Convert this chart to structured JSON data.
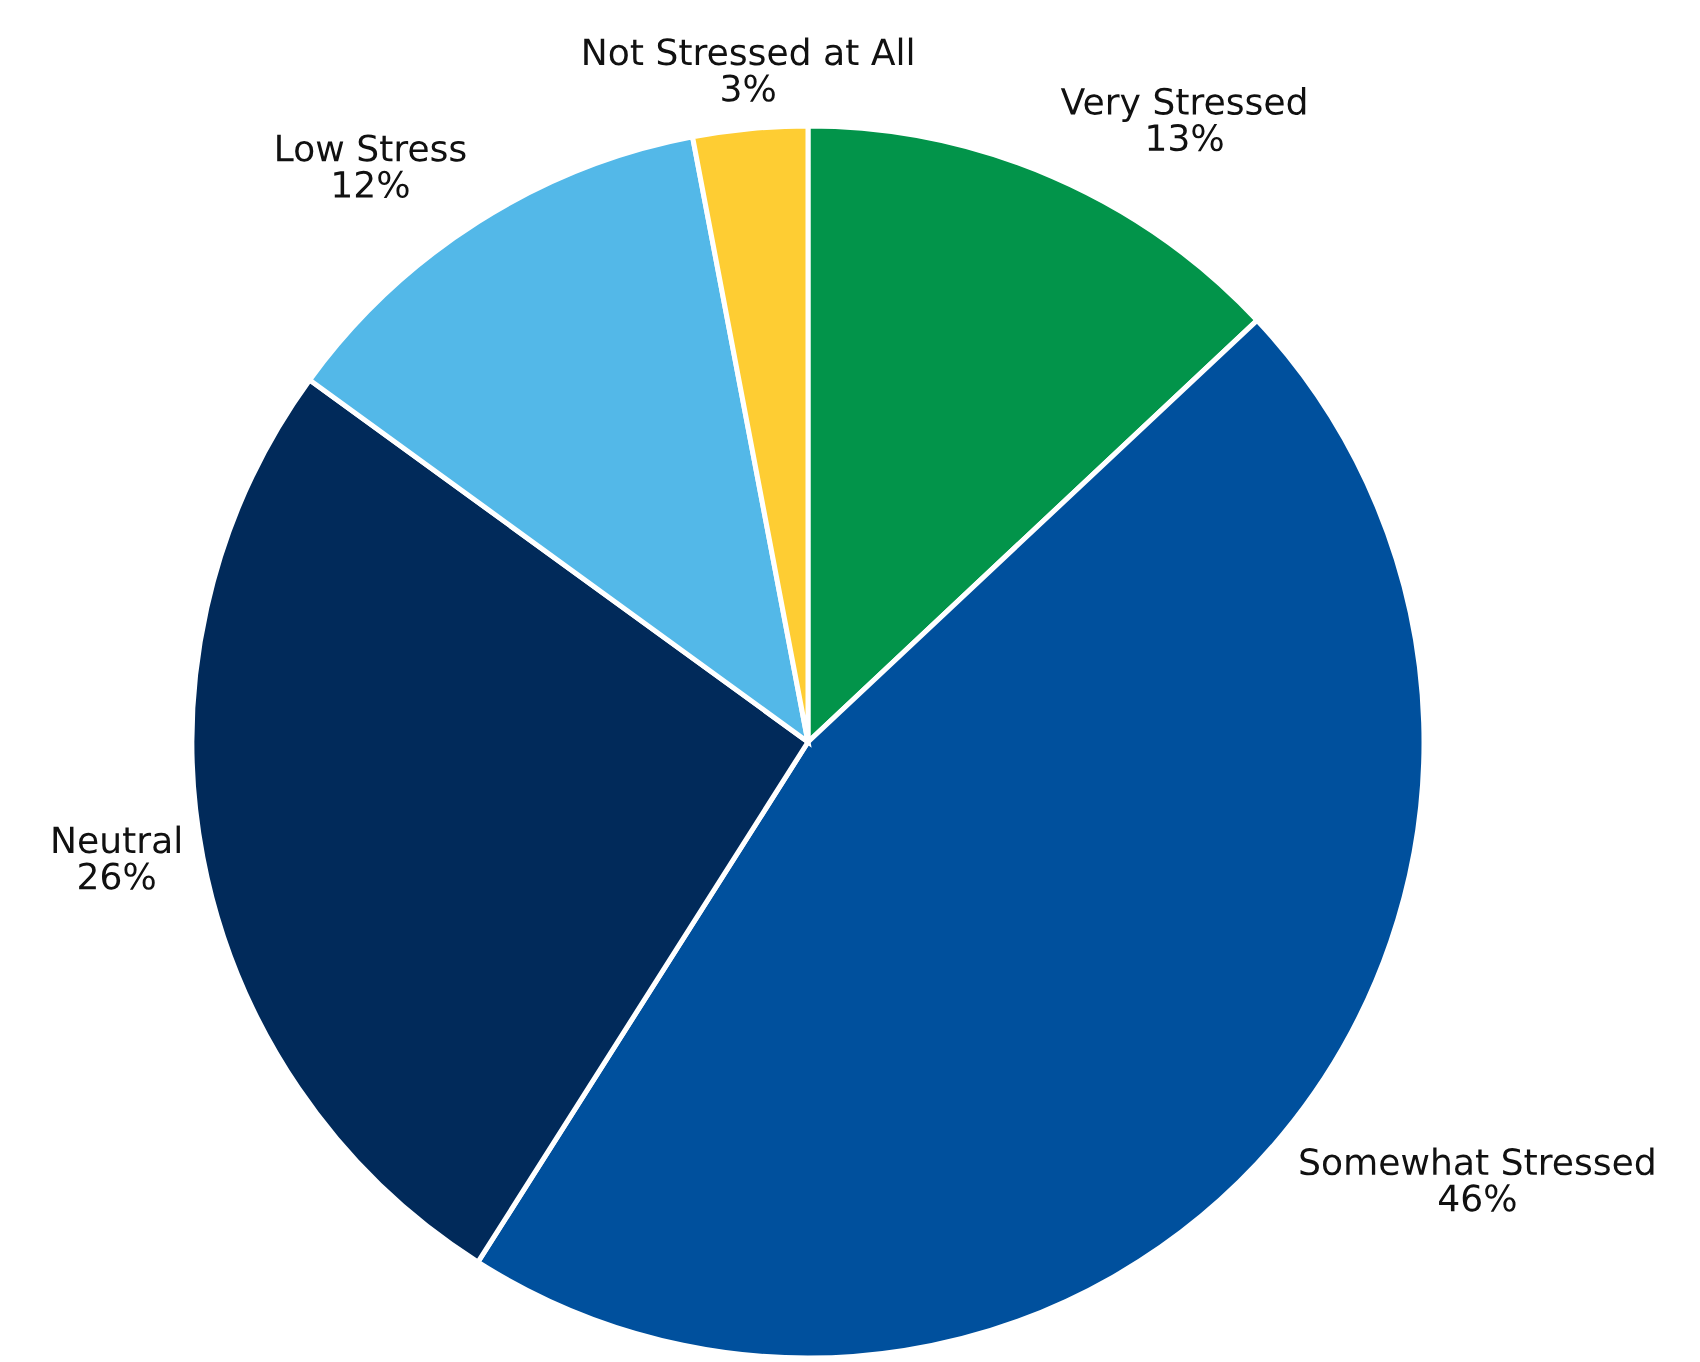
{
  "chart_data": {
    "type": "pie",
    "categories": [
      "Very Stressed",
      "Somewhat Stressed",
      "Neutral",
      "Low Stress",
      "Not Stressed at All"
    ],
    "values": [
      13,
      46,
      26,
      12,
      3
    ],
    "colors": [
      "#02944a",
      "#00509d",
      "#012a5a",
      "#53b8e8",
      "#fecd33"
    ],
    "value_labels": [
      "13%",
      "46%",
      "26%",
      "12%",
      "3%"
    ]
  }
}
